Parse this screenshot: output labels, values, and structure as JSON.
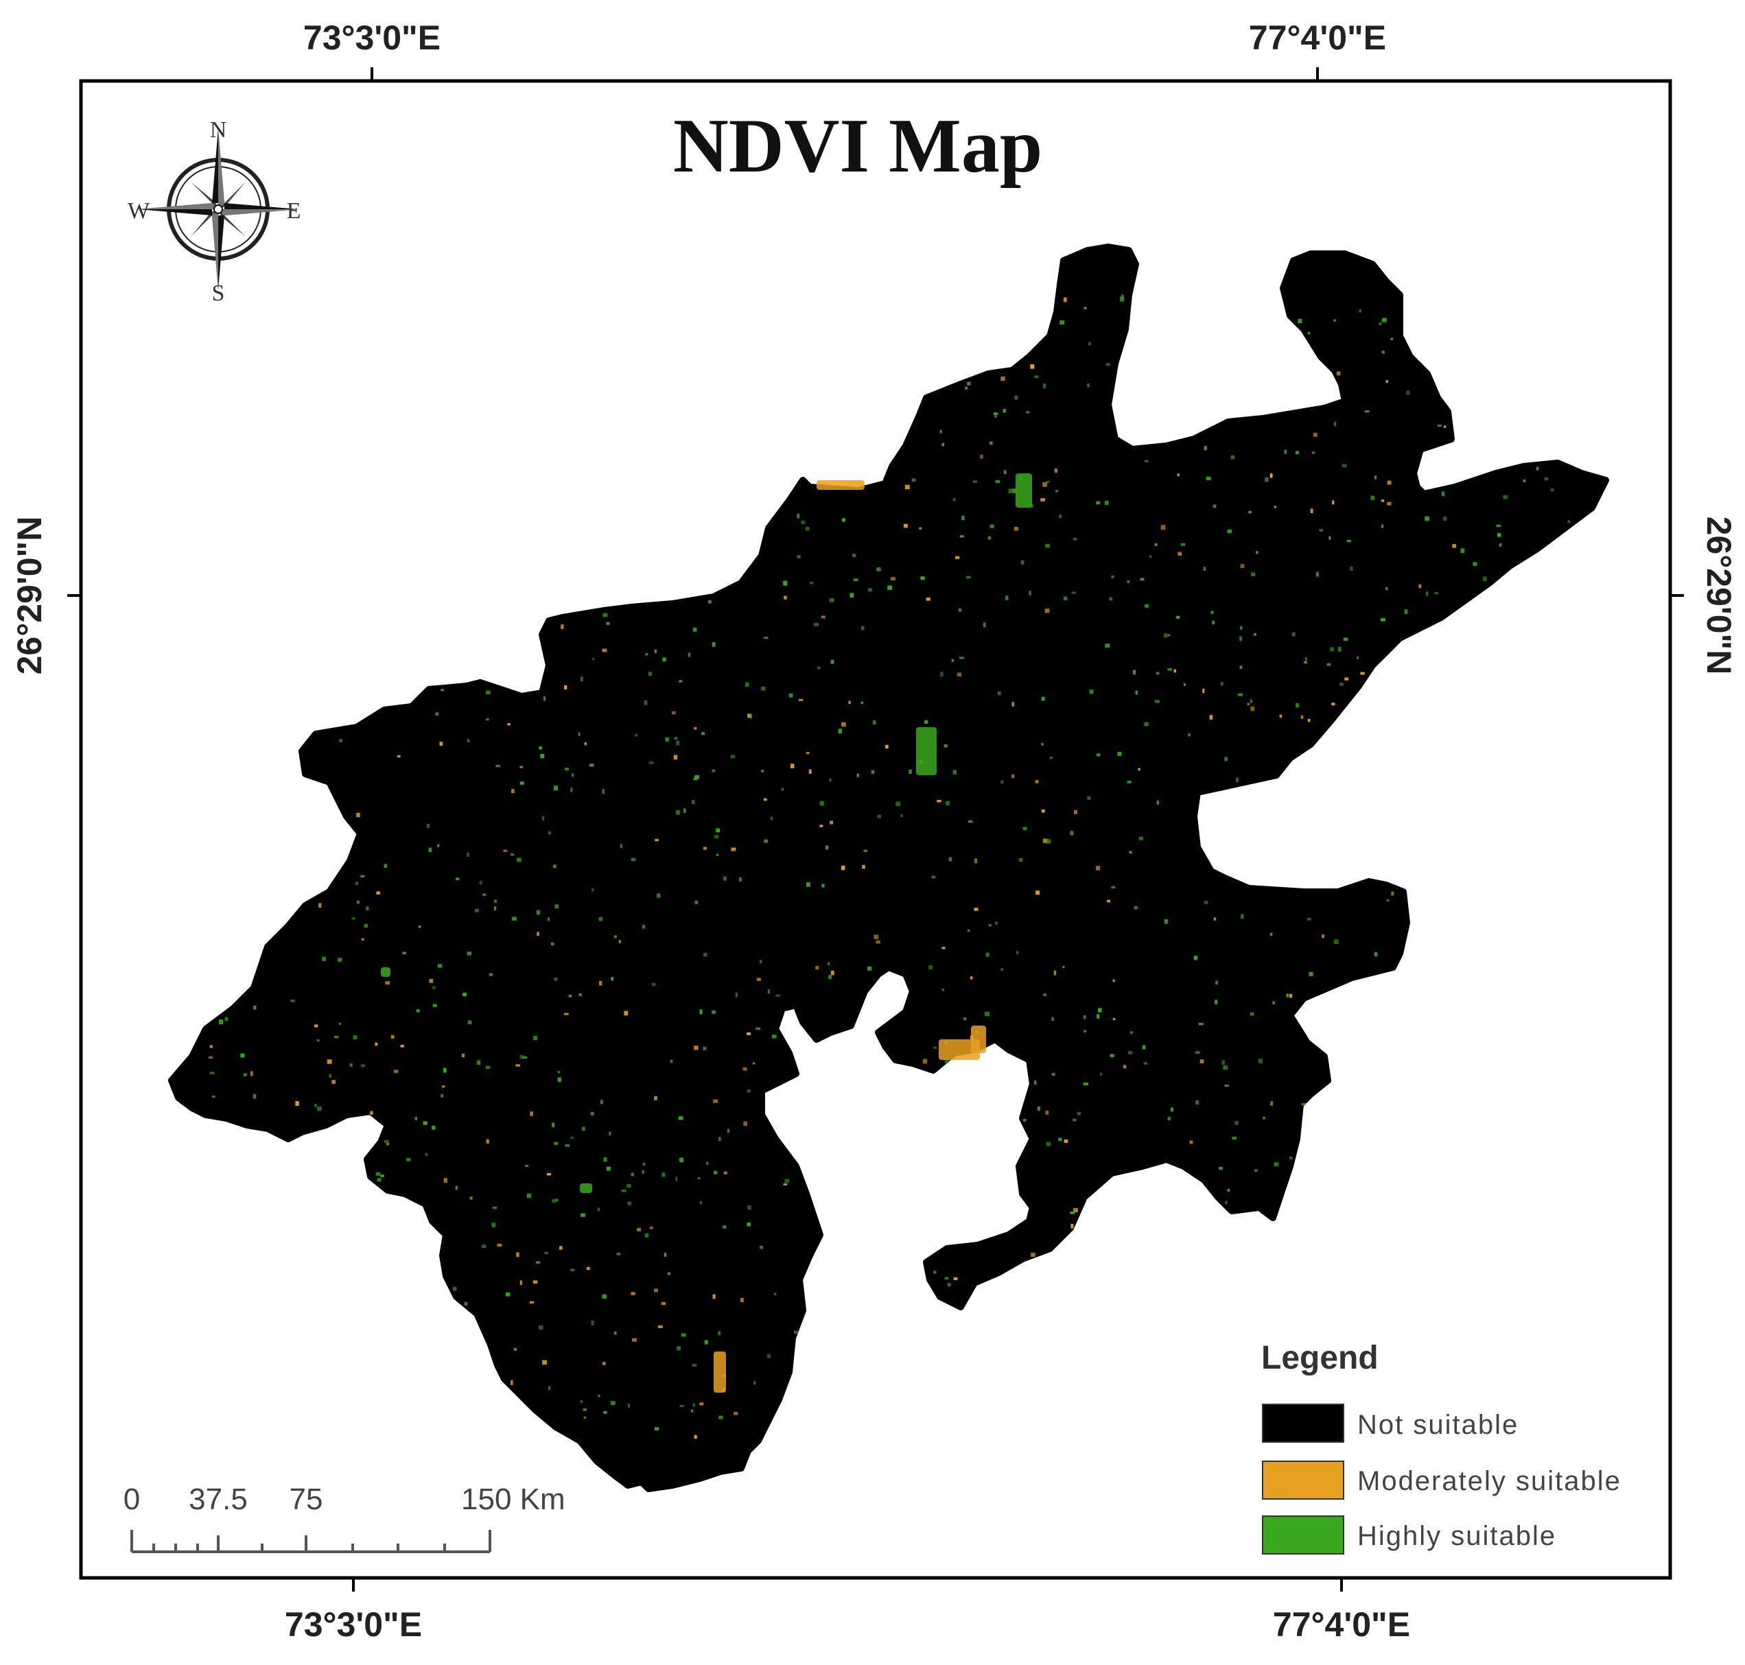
{
  "title": "NDVI Map",
  "graticule": {
    "top_labels": [
      "73°3'0\"E",
      "77°4'0\"E"
    ],
    "bottom_labels": [
      "73°3'0\"E",
      "77°4'0\"E"
    ],
    "left_label": "26°29'0\"N",
    "right_label": "26°29'0\"N"
  },
  "north_arrow": {
    "n": "N",
    "s": "S",
    "e": "E",
    "w": "W",
    "icon": "compass-rose-icon"
  },
  "legend": {
    "title": "Legend",
    "items": [
      {
        "label": "Not suitable",
        "color": "#000000"
      },
      {
        "label": "Moderately suitable",
        "color": "#E8A020"
      },
      {
        "label": "Highly suitable",
        "color": "#3AA81E"
      }
    ]
  },
  "scale_bar": {
    "labels": [
      "0",
      "37.5",
      "75",
      "150 Km"
    ]
  },
  "colors": {
    "region": "#000000",
    "moderate": "#E8A020",
    "high": "#3AA81E",
    "frame": "#000000"
  }
}
